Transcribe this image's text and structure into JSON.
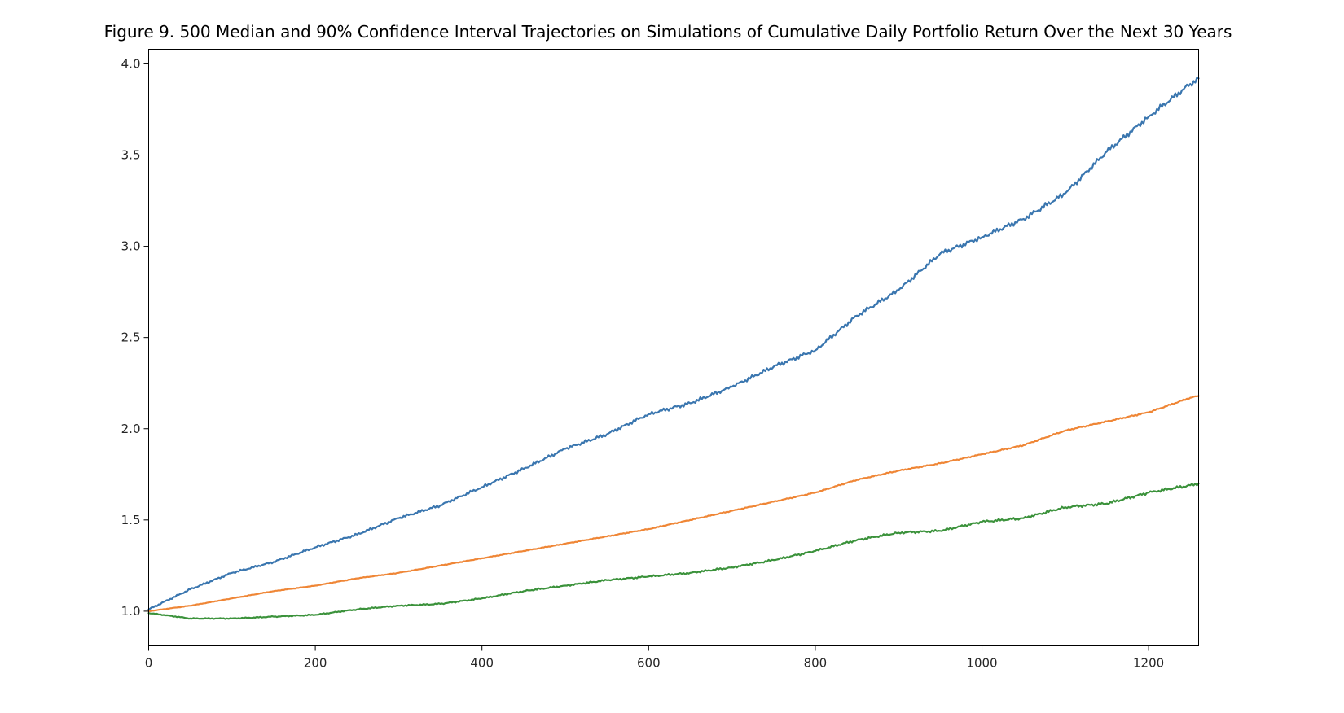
{
  "chart_data": {
    "type": "line",
    "title": "Figure 9. 500 Median and 90% Confidence Interval Trajectories on Simulations of Cumulative Daily Portfolio Return Over the Next 30 Years",
    "xlabel": "",
    "ylabel": "",
    "xlim": [
      0,
      1260
    ],
    "ylim": [
      0.81,
      4.08
    ],
    "xticks": [
      0,
      200,
      400,
      600,
      800,
      1000,
      1200
    ],
    "xtick_labels": [
      "0",
      "200",
      "400",
      "600",
      "800",
      "1000",
      "1200"
    ],
    "yticks": [
      1.0,
      1.5,
      2.0,
      2.5,
      3.0,
      3.5,
      4.0
    ],
    "ytick_labels": [
      "1.0",
      "1.5",
      "2.0",
      "2.5",
      "3.0",
      "3.5",
      "4.0"
    ],
    "grid": false,
    "x": [
      0,
      50,
      100,
      150,
      200,
      250,
      300,
      350,
      400,
      450,
      500,
      550,
      600,
      650,
      700,
      750,
      800,
      850,
      900,
      950,
      1000,
      1050,
      1100,
      1150,
      1200,
      1250,
      1260
    ],
    "series": [
      {
        "color": "#3a76af",
        "values": [
          1.01,
          1.12,
          1.21,
          1.27,
          1.35,
          1.42,
          1.51,
          1.58,
          1.68,
          1.78,
          1.89,
          1.97,
          2.08,
          2.14,
          2.23,
          2.34,
          2.43,
          2.62,
          2.76,
          2.96,
          3.05,
          3.15,
          3.29,
          3.52,
          3.71,
          3.89,
          3.92
        ]
      },
      {
        "color": "#ef8636",
        "values": [
          1.0,
          1.03,
          1.07,
          1.11,
          1.14,
          1.18,
          1.21,
          1.25,
          1.29,
          1.33,
          1.37,
          1.41,
          1.45,
          1.5,
          1.55,
          1.6,
          1.65,
          1.72,
          1.77,
          1.81,
          1.86,
          1.91,
          1.99,
          2.04,
          2.09,
          2.17,
          2.18
        ]
      },
      {
        "color": "#3b923b",
        "values": [
          0.99,
          0.96,
          0.96,
          0.97,
          0.98,
          1.01,
          1.03,
          1.04,
          1.07,
          1.11,
          1.14,
          1.17,
          1.19,
          1.21,
          1.24,
          1.28,
          1.33,
          1.39,
          1.43,
          1.44,
          1.49,
          1.51,
          1.57,
          1.59,
          1.65,
          1.69,
          1.7
        ]
      }
    ]
  }
}
